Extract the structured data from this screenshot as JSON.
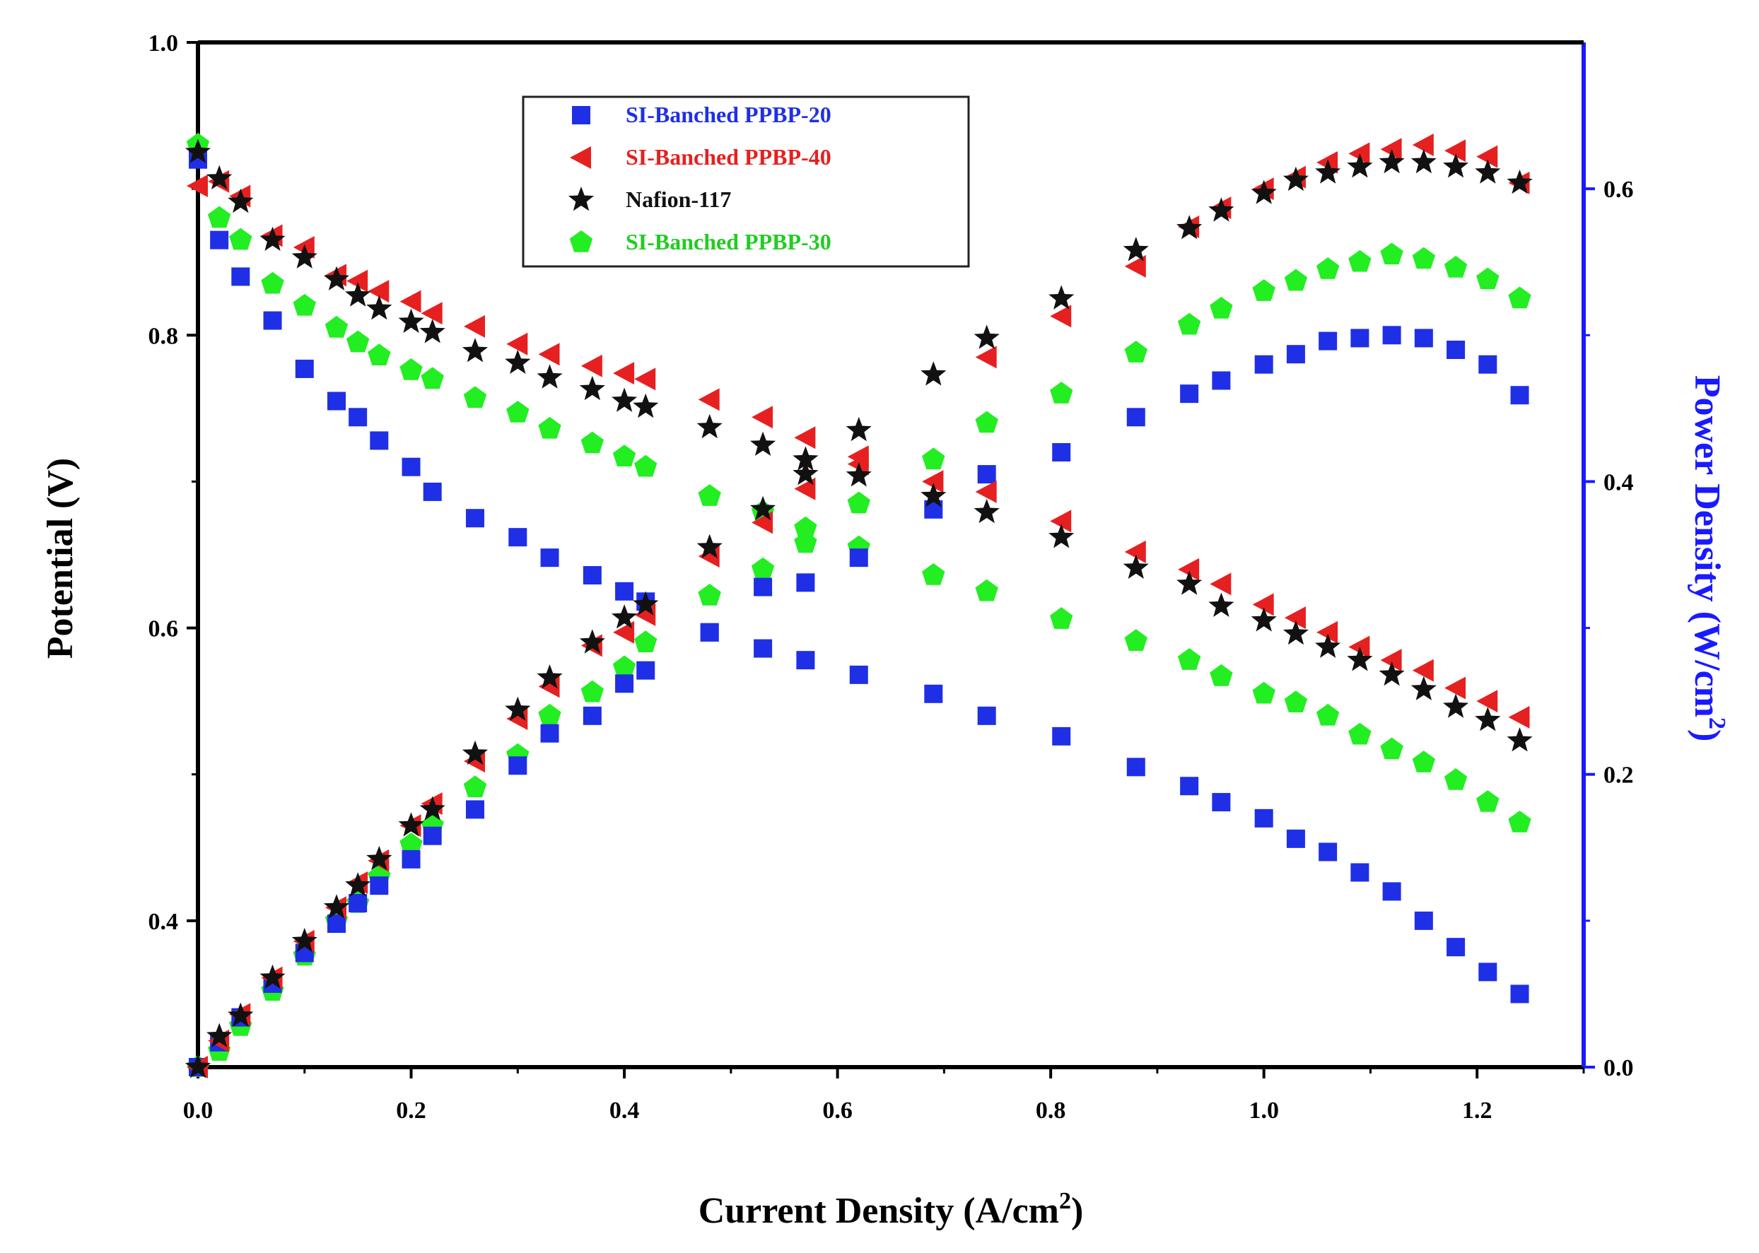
{
  "chart_data": {
    "type": "scatter",
    "title": "",
    "xlabel": "Current Density (A/cm",
    "xlabel_sup": "2",
    "xlabel_close": ")",
    "ylabel_left": "Potential (V)",
    "ylabel_right": "Power Density (W/cm",
    "ylabel_right_sup": "2",
    "ylabel_right_close": ")",
    "xlim": [
      0.0,
      1.3
    ],
    "ylim_left": [
      0.3,
      1.0
    ],
    "ylim_right": [
      0.0,
      0.7
    ],
    "x_ticks": [
      "0.0",
      "0.2",
      "0.4",
      "0.6",
      "0.8",
      "1.0",
      "1.2"
    ],
    "y_left_ticks": [
      "0.4",
      "0.6",
      "0.8",
      "1.0"
    ],
    "y_right_ticks": [
      "0.0",
      "0.2",
      "0.4",
      "0.6"
    ],
    "x_tick_values": [
      0.0,
      0.2,
      0.4,
      0.6,
      0.8,
      1.0,
      1.2
    ],
    "y_left_tick_values": [
      0.4,
      0.6,
      0.8,
      1.0
    ],
    "y_right_tick_values": [
      0.0,
      0.2,
      0.4,
      0.6
    ],
    "legend_position": "top-center",
    "legend": [
      {
        "label": "SI-Banched PPBP-20",
        "color": "#1f2fe6",
        "marker": "square"
      },
      {
        "label": "SI-Banched PPBP-40",
        "color": "#e62020",
        "marker": "triangle-left"
      },
      {
        "label": "Nafion-117",
        "color": "#111111",
        "marker": "star"
      },
      {
        "label": "SI-Banched PPBP-30",
        "color": "#22ee22",
        "marker": "pentagon"
      }
    ],
    "axis_colors": {
      "left": "#000000",
      "right": "#1a1aff"
    },
    "x": [
      0.0,
      0.02,
      0.04,
      0.07,
      0.1,
      0.13,
      0.15,
      0.17,
      0.2,
      0.22,
      0.26,
      0.3,
      0.33,
      0.37,
      0.4,
      0.42,
      0.48,
      0.53,
      0.57,
      0.62,
      0.69,
      0.74,
      0.81,
      0.88,
      0.93,
      0.96,
      1.0,
      1.03,
      1.06,
      1.09,
      1.12,
      1.15,
      1.18,
      1.21,
      1.24
    ],
    "series": [
      {
        "name": "SI-Banched PPBP-20",
        "color": "#1f2fe6",
        "marker": "square",
        "potential": [
          0.92,
          0.865,
          0.84,
          0.81,
          0.777,
          0.755,
          0.744,
          0.728,
          0.71,
          0.693,
          0.675,
          0.662,
          0.648,
          0.636,
          0.625,
          0.618,
          0.597,
          0.586,
          0.578,
          0.568,
          0.555,
          0.54,
          0.526,
          0.505,
          0.492,
          0.481,
          0.47,
          0.456,
          0.447,
          0.433,
          0.42,
          0.4,
          0.382,
          0.365,
          0.35
        ],
        "power": [
          0.0,
          0.017,
          0.034,
          0.057,
          0.078,
          0.098,
          0.112,
          0.124,
          0.142,
          0.158,
          0.176,
          0.206,
          0.228,
          0.24,
          0.262,
          0.271,
          0.297,
          0.328,
          0.331,
          0.348,
          0.381,
          0.405,
          0.42,
          0.444,
          0.46,
          0.469,
          0.48,
          0.487,
          0.496,
          0.498,
          0.5,
          0.498,
          0.49,
          0.48,
          0.459
        ]
      },
      {
        "name": "SI-Banched PPBP-40",
        "color": "#e62020",
        "marker": "triangle-left",
        "potential": [
          0.902,
          0.905,
          0.895,
          0.868,
          0.86,
          0.841,
          0.837,
          0.83,
          0.823,
          0.815,
          0.806,
          0.794,
          0.787,
          0.779,
          0.774,
          0.77,
          0.756,
          0.744,
          0.73,
          0.717,
          0.7,
          0.693,
          0.673,
          0.652,
          0.64,
          0.63,
          0.616,
          0.607,
          0.597,
          0.587,
          0.578,
          0.571,
          0.559,
          0.55,
          0.539
        ],
        "power": [
          0.0,
          0.018,
          0.036,
          0.061,
          0.086,
          0.109,
          0.126,
          0.141,
          0.165,
          0.18,
          0.209,
          0.238,
          0.26,
          0.288,
          0.297,
          0.309,
          0.349,
          0.372,
          0.395,
          0.412,
          0.4,
          0.485,
          0.513,
          0.547,
          0.574,
          0.587,
          0.6,
          0.608,
          0.618,
          0.624,
          0.627,
          0.63,
          0.626,
          0.622,
          0.604
        ]
      },
      {
        "name": "Nafion-117",
        "color": "#111111",
        "marker": "star",
        "potential": [
          0.925,
          0.907,
          0.891,
          0.865,
          0.853,
          0.838,
          0.827,
          0.818,
          0.809,
          0.802,
          0.789,
          0.781,
          0.771,
          0.763,
          0.755,
          0.751,
          0.737,
          0.725,
          0.715,
          0.704,
          0.69,
          0.679,
          0.662,
          0.641,
          0.63,
          0.615,
          0.605,
          0.596,
          0.587,
          0.578,
          0.568,
          0.558,
          0.546,
          0.537,
          0.523
        ],
        "power": [
          0.0,
          0.021,
          0.035,
          0.061,
          0.086,
          0.109,
          0.124,
          0.142,
          0.165,
          0.176,
          0.214,
          0.244,
          0.266,
          0.29,
          0.307,
          0.316,
          0.355,
          0.381,
          0.405,
          0.435,
          0.473,
          0.498,
          0.525,
          0.558,
          0.573,
          0.585,
          0.597,
          0.606,
          0.611,
          0.615,
          0.618,
          0.618,
          0.615,
          0.611,
          0.604
        ]
      },
      {
        "name": "SI-Banched PPBP-30",
        "color": "#22ee22",
        "marker": "pentagon",
        "potential": [
          0.93,
          0.88,
          0.865,
          0.835,
          0.82,
          0.805,
          0.795,
          0.786,
          0.776,
          0.77,
          0.757,
          0.747,
          0.736,
          0.726,
          0.717,
          0.71,
          0.69,
          0.679,
          0.668,
          0.655,
          0.636,
          0.625,
          0.606,
          0.591,
          0.578,
          0.567,
          0.555,
          0.549,
          0.54,
          0.527,
          0.517,
          0.508,
          0.496,
          0.481,
          0.467
        ],
        "power": [
          0.0,
          0.011,
          0.028,
          0.052,
          0.076,
          0.1,
          0.112,
          0.13,
          0.152,
          0.165,
          0.191,
          0.213,
          0.24,
          0.256,
          0.273,
          0.29,
          0.322,
          0.34,
          0.358,
          0.385,
          0.415,
          0.44,
          0.46,
          0.488,
          0.507,
          0.518,
          0.53,
          0.537,
          0.545,
          0.55,
          0.555,
          0.552,
          0.546,
          0.538,
          0.525
        ]
      }
    ]
  }
}
